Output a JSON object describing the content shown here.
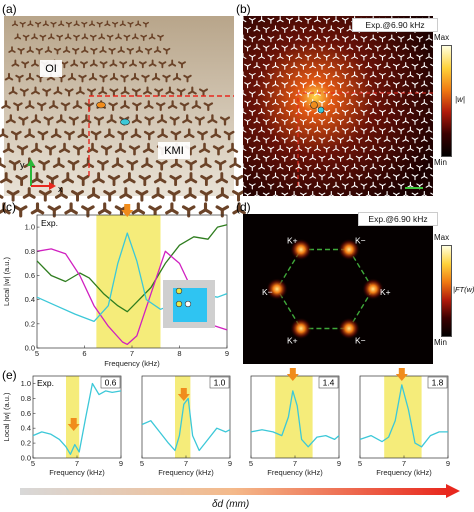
{
  "panels": {
    "a": {
      "label": "(a)",
      "region_left": "OI",
      "region_right": "KMI",
      "axis_y": "y",
      "axis_x": "x"
    },
    "b": {
      "label": "(b)",
      "title": "Exp.@6.90 kHz",
      "cbar_max": "Max",
      "cbar_min": "Min",
      "cbar_label": "|w|"
    },
    "c": {
      "label": "(c)",
      "tag": "Exp.",
      "xlabel": "Frequency (kHz)",
      "ylabel": "Local |w| (a.u.)",
      "xticks": [
        "5",
        "6",
        "7",
        "8",
        "9"
      ],
      "yticks": [
        "0.0",
        "0.2",
        "0.4",
        "0.6",
        "0.8",
        "1.0"
      ]
    },
    "d": {
      "label": "(d)",
      "title": "Exp.@6.90 kHz",
      "cbar_max": "Max",
      "cbar_min": "Min",
      "cbar_label": "|FT(w)|",
      "k_labels": [
        "K+",
        "K−",
        "K+",
        "K−",
        "K+",
        "K−"
      ]
    },
    "e": {
      "label": "(e)",
      "tag": "Exp.",
      "ylabel": "Local |w| (a.u.)",
      "yticks": [
        "0.0",
        "0.2",
        "0.4",
        "0.6",
        "0.8",
        "1.0"
      ],
      "xticks": [
        "5",
        "7",
        "9"
      ],
      "xlabel": "Frequency (kHz)",
      "subpanels": [
        "0.6",
        "1.0",
        "1.4",
        "1.8"
      ]
    }
  },
  "bottom_axis": {
    "label": "δd (mm)"
  },
  "colors": {
    "green": "#2f7d1f",
    "magenta": "#d020c0",
    "cyan": "#3cc8d8",
    "yellow": "#f5ec7a",
    "orange": "#f08c1c",
    "red": "#e8281e"
  },
  "chart_data": [
    {
      "type": "line",
      "panel": "c",
      "x_range": [
        5,
        9
      ],
      "ylim": [
        0,
        1.1
      ],
      "highlight_band": [
        6.25,
        7.6
      ],
      "arrow_x": 6.9,
      "series": [
        {
          "color": "green",
          "x": [
            5,
            5.3,
            5.6,
            5.9,
            6.1,
            6.4,
            6.7,
            6.9,
            7.1,
            7.4,
            7.7,
            8.0,
            8.3,
            8.6,
            8.8,
            9.0
          ],
          "y": [
            0.72,
            0.6,
            0.55,
            0.62,
            0.58,
            0.45,
            0.35,
            0.3,
            0.38,
            0.5,
            0.7,
            0.85,
            0.92,
            0.9,
            1.0,
            1.02
          ]
        },
        {
          "color": "magenta",
          "x": [
            5,
            5.3,
            5.6,
            5.9,
            6.2,
            6.5,
            6.8,
            6.9,
            7.1,
            7.4,
            7.7,
            8.0,
            8.3,
            8.6,
            9.0
          ],
          "y": [
            0.8,
            0.82,
            0.78,
            0.6,
            0.35,
            0.18,
            0.05,
            0.03,
            0.1,
            0.45,
            0.8,
            0.7,
            0.45,
            0.2,
            0.15
          ]
        },
        {
          "color": "cyan",
          "x": [
            5,
            5.4,
            5.8,
            6.2,
            6.5,
            6.7,
            6.9,
            7.1,
            7.3,
            7.6,
            8.0,
            8.4,
            8.8,
            9.0
          ],
          "y": [
            0.42,
            0.35,
            0.28,
            0.22,
            0.35,
            0.7,
            0.95,
            0.72,
            0.4,
            0.32,
            0.38,
            0.45,
            0.42,
            0.45
          ]
        }
      ]
    },
    {
      "type": "line",
      "panel": "e1",
      "value": "0.6",
      "x_range": [
        5,
        9
      ],
      "ylim": [
        0,
        1.1
      ],
      "highlight_band": [
        6.5,
        7.1
      ],
      "arrow_x": 6.85,
      "series": [
        {
          "color": "cyan",
          "x": [
            5,
            5.4,
            5.8,
            6.2,
            6.5,
            6.7,
            6.9,
            7.1,
            7.4,
            7.7,
            8.0,
            8.3,
            8.6,
            9.0
          ],
          "y": [
            0.3,
            0.35,
            0.32,
            0.25,
            0.15,
            0.05,
            0.18,
            0.08,
            0.55,
            1.0,
            0.85,
            0.9,
            0.88,
            0.9
          ]
        }
      ]
    },
    {
      "type": "line",
      "panel": "e2",
      "value": "1.0",
      "x_range": [
        5,
        9
      ],
      "ylim": [
        0,
        1.1
      ],
      "highlight_band": [
        6.5,
        7.2
      ],
      "arrow_x": 6.9,
      "series": [
        {
          "color": "cyan",
          "x": [
            5,
            5.4,
            5.8,
            6.2,
            6.5,
            6.7,
            6.9,
            7.1,
            7.3,
            7.6,
            8.0,
            8.4,
            8.8,
            9.0
          ],
          "y": [
            0.45,
            0.5,
            0.35,
            0.2,
            0.1,
            0.3,
            0.72,
            0.8,
            0.3,
            0.1,
            0.25,
            0.4,
            0.35,
            0.38
          ]
        }
      ]
    },
    {
      "type": "line",
      "panel": "e3",
      "value": "1.4",
      "x_range": [
        5,
        9
      ],
      "ylim": [
        0,
        1.1
      ],
      "highlight_band": [
        6.1,
        7.8
      ],
      "arrow_x": 6.9,
      "series": [
        {
          "color": "cyan",
          "x": [
            5,
            5.5,
            6.0,
            6.4,
            6.7,
            6.9,
            7.1,
            7.3,
            7.6,
            8.0,
            8.4,
            8.8,
            9.0
          ],
          "y": [
            0.35,
            0.38,
            0.35,
            0.3,
            0.55,
            0.9,
            0.7,
            0.25,
            0.15,
            0.28,
            0.3,
            0.25,
            0.3
          ]
        }
      ]
    },
    {
      "type": "line",
      "panel": "e4",
      "value": "1.8",
      "x_range": [
        5,
        9
      ],
      "ylim": [
        0,
        1.1
      ],
      "highlight_band": [
        6.1,
        7.8
      ],
      "arrow_x": 6.9,
      "series": [
        {
          "color": "cyan",
          "x": [
            5,
            5.5,
            6.0,
            6.3,
            6.6,
            6.9,
            7.2,
            7.5,
            7.8,
            8.2,
            8.6,
            9.0
          ],
          "y": [
            0.25,
            0.3,
            0.22,
            0.28,
            0.5,
            0.98,
            0.65,
            0.2,
            0.15,
            0.3,
            0.35,
            0.35
          ]
        }
      ]
    }
  ]
}
